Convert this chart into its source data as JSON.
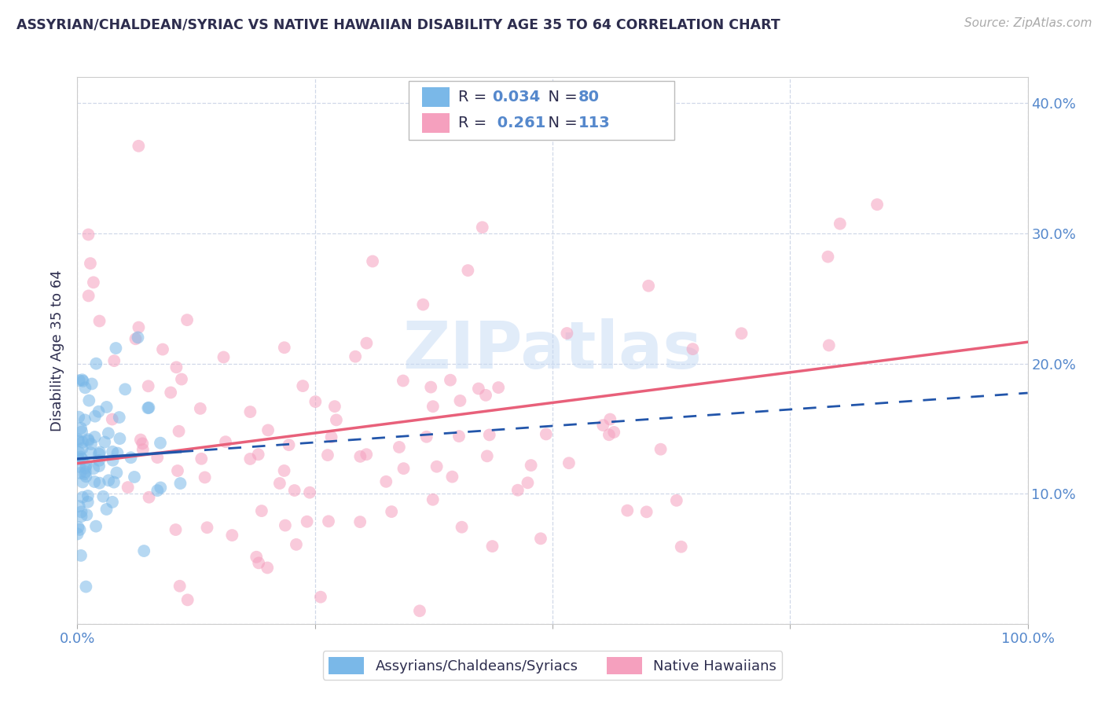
{
  "title": "ASSYRIAN/CHALDEAN/SYRIAC VS NATIVE HAWAIIAN DISABILITY AGE 35 TO 64 CORRELATION CHART",
  "source": "Source: ZipAtlas.com",
  "ylabel": "Disability Age 35 to 64",
  "xlim": [
    0.0,
    1.0
  ],
  "ylim": [
    0.0,
    0.42
  ],
  "xtick_positions": [
    0.0,
    0.25,
    0.5,
    0.75,
    1.0
  ],
  "xticklabels": [
    "0.0%",
    "",
    "",
    "",
    "100.0%"
  ],
  "ytick_positions": [
    0.0,
    0.1,
    0.2,
    0.3,
    0.4
  ],
  "yticklabels": [
    "",
    "10.0%",
    "20.0%",
    "30.0%",
    "40.0%"
  ],
  "legend_labels": [
    "Assyrians/Chaldeans/Syriacs",
    "Native Hawaiians"
  ],
  "R_blue": 0.034,
  "N_blue": 80,
  "R_pink": 0.261,
  "N_pink": 113,
  "blue_scatter_color": "#7ab8e8",
  "pink_scatter_color": "#f5a0be",
  "blue_line_color": "#2255aa",
  "pink_line_color": "#e8607a",
  "title_color": "#2d2d4e",
  "axis_color": "#5588cc",
  "grid_color": "#d0d8e8",
  "background_color": "#ffffff",
  "watermark_color": "#c5daf5",
  "watermark_alpha": 0.5,
  "scatter_size": 130,
  "scatter_alpha": 0.55
}
